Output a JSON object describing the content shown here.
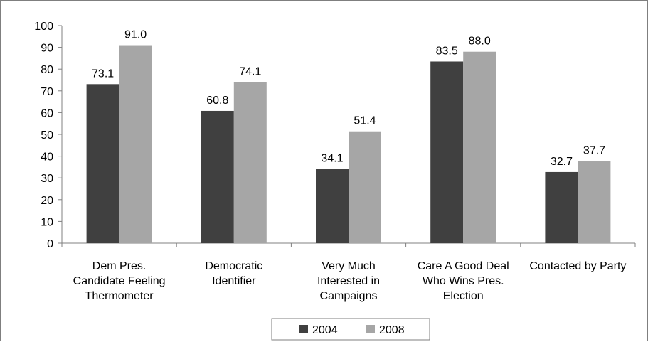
{
  "chart_data": {
    "type": "bar",
    "categories": [
      [
        "Dem Pres.",
        "Candidate Feeling",
        "Thermometer"
      ],
      [
        "Democratic",
        "Identifier"
      ],
      [
        "Very Much",
        "Interested in",
        "Campaigns"
      ],
      [
        "Care A Good Deal",
        "Who Wins Pres.",
        "Election"
      ],
      [
        "Contacted by Party"
      ]
    ],
    "series": [
      {
        "name": "2004",
        "color": "#404040",
        "values": [
          73.1,
          60.8,
          34.1,
          83.5,
          32.7
        ],
        "labels": [
          "73.1",
          "60.8",
          "34.1",
          "83.5",
          "32.7"
        ]
      },
      {
        "name": "2008",
        "color": "#a6a6a6",
        "values": [
          91.0,
          74.1,
          51.4,
          88.0,
          37.7
        ],
        "labels": [
          "91.0",
          "74.1",
          "51.4",
          "88.0",
          "37.7"
        ]
      }
    ],
    "yticks": [
      0,
      10,
      20,
      30,
      40,
      50,
      60,
      70,
      80,
      90,
      100
    ],
    "ylim": [
      0,
      100
    ],
    "grid": false,
    "legend_position": "bottom"
  }
}
